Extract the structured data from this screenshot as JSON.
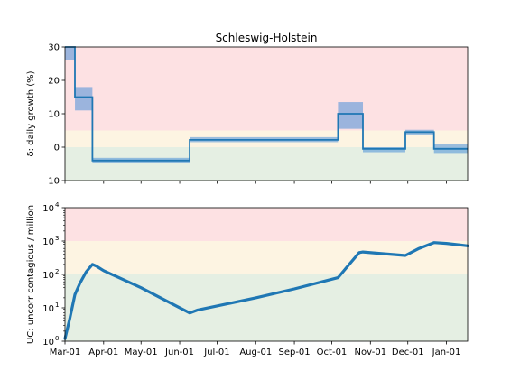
{
  "chart_data": [
    {
      "type": "line",
      "title": "Schleswig-Holstein",
      "ylabel": "δ: daily growth (%)",
      "ylim": [
        -10,
        30
      ],
      "yticks": [
        -10,
        0,
        10,
        20,
        30
      ],
      "x_range": [
        "2020-03-01",
        "2021-01-18"
      ],
      "grid": false,
      "bands": [
        {
          "from": 5,
          "to": 30,
          "color": "#fde1e3"
        },
        {
          "from": 0,
          "to": 5,
          "color": "#fdf4e2"
        },
        {
          "from": -10,
          "to": 0,
          "color": "#e5efe3"
        }
      ],
      "series": [
        {
          "color": "#1f77b4",
          "values": [
            {
              "from": "2020-03-01",
              "to": "2020-03-09",
              "y": 30,
              "lo": 26,
              "hi": 30
            },
            {
              "from": "2020-03-09",
              "to": "2020-03-23",
              "y": 15,
              "lo": 11,
              "hi": 18
            },
            {
              "from": "2020-03-23",
              "to": "2020-06-09",
              "y": -4,
              "lo": -4.8,
              "hi": -3.2
            },
            {
              "from": "2020-06-09",
              "to": "2020-10-06",
              "y": 2.2,
              "lo": 1.5,
              "hi": 3.0
            },
            {
              "from": "2020-10-06",
              "to": "2020-10-26",
              "y": 10,
              "lo": 5.5,
              "hi": 13.5
            },
            {
              "from": "2020-10-26",
              "to": "2020-11-29",
              "y": -0.5,
              "lo": -1.5,
              "hi": 0.0
            },
            {
              "from": "2020-11-29",
              "to": "2020-12-22",
              "y": 4.5,
              "lo": 3.8,
              "hi": 5.2
            },
            {
              "from": "2020-12-22",
              "to": "2021-01-18",
              "y": -0.5,
              "lo": -2.0,
              "hi": 1.0
            }
          ]
        }
      ]
    },
    {
      "type": "line",
      "ylabel": "UC: uncorr contagious / million",
      "yscale": "log",
      "ylim": [
        1,
        10000
      ],
      "yticks": [
        {
          "value": 1,
          "base": "10",
          "exp": "0"
        },
        {
          "value": 10,
          "base": "10",
          "exp": "1"
        },
        {
          "value": 100,
          "base": "10",
          "exp": "2"
        },
        {
          "value": 1000,
          "base": "10",
          "exp": "3"
        },
        {
          "value": 10000,
          "base": "10",
          "exp": "4"
        }
      ],
      "x_range": [
        "2020-03-01",
        "2021-01-18"
      ],
      "xticks": [
        {
          "date": "2020-03-01",
          "label": "Mar-01"
        },
        {
          "date": "2020-04-01",
          "label": "Apr-01"
        },
        {
          "date": "2020-05-01",
          "label": "May-01"
        },
        {
          "date": "2020-06-01",
          "label": "Jun-01"
        },
        {
          "date": "2020-07-01",
          "label": "Jul-01"
        },
        {
          "date": "2020-08-01",
          "label": "Aug-01"
        },
        {
          "date": "2020-09-01",
          "label": "Sep-01"
        },
        {
          "date": "2020-10-01",
          "label": "Oct-01"
        },
        {
          "date": "2020-11-01",
          "label": "Nov-01"
        },
        {
          "date": "2020-12-01",
          "label": "Dec-01"
        },
        {
          "date": "2021-01-01",
          "label": "Jan-01"
        }
      ],
      "grid": false,
      "bands": [
        {
          "from": 1000,
          "to": 10000,
          "color": "#fde1e3"
        },
        {
          "from": 100,
          "to": 1000,
          "color": "#fdf4e2"
        },
        {
          "from": 1,
          "to": 100,
          "color": "#e5efe3"
        }
      ],
      "series": [
        {
          "color": "#1f77b4",
          "points": [
            {
              "x": "2020-03-01",
              "y": 1.2
            },
            {
              "x": "2020-03-05",
              "y": 5
            },
            {
              "x": "2020-03-09",
              "y": 25
            },
            {
              "x": "2020-03-13",
              "y": 55
            },
            {
              "x": "2020-03-18",
              "y": 120
            },
            {
              "x": "2020-03-23",
              "y": 200
            },
            {
              "x": "2020-03-26",
              "y": 180
            },
            {
              "x": "2020-04-01",
              "y": 130
            },
            {
              "x": "2020-05-01",
              "y": 40
            },
            {
              "x": "2020-06-09",
              "y": 7
            },
            {
              "x": "2020-06-15",
              "y": 8.5
            },
            {
              "x": "2020-08-01",
              "y": 20
            },
            {
              "x": "2020-09-01",
              "y": 37
            },
            {
              "x": "2020-10-06",
              "y": 80
            },
            {
              "x": "2020-10-15",
              "y": 200
            },
            {
              "x": "2020-10-23",
              "y": 450
            },
            {
              "x": "2020-10-26",
              "y": 470
            },
            {
              "x": "2020-11-10",
              "y": 420
            },
            {
              "x": "2020-11-29",
              "y": 370
            },
            {
              "x": "2020-12-10",
              "y": 600
            },
            {
              "x": "2020-12-22",
              "y": 900
            },
            {
              "x": "2021-01-01",
              "y": 850
            },
            {
              "x": "2021-01-18",
              "y": 720
            }
          ]
        }
      ]
    }
  ]
}
